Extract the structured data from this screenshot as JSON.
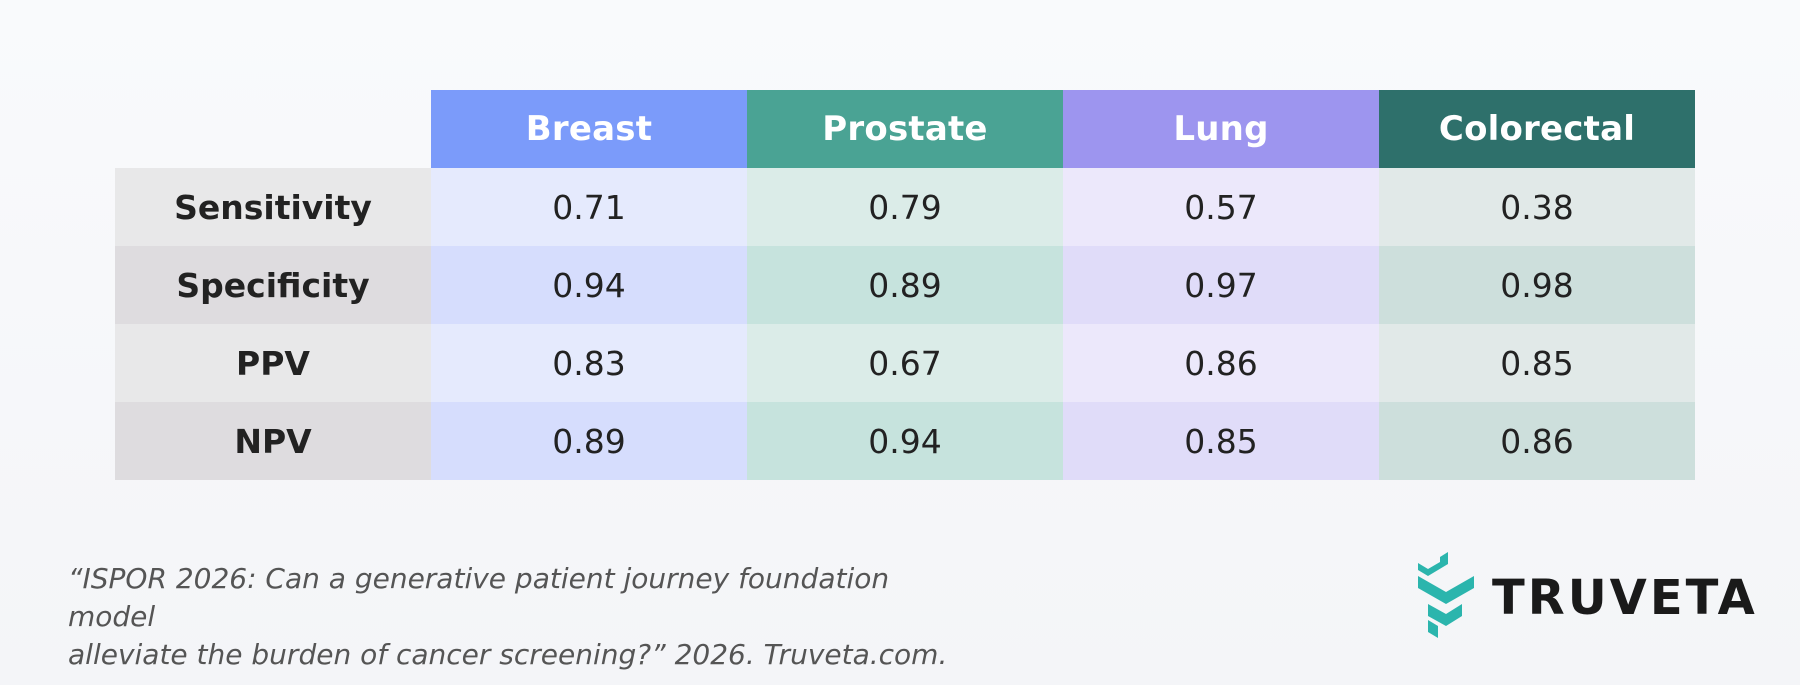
{
  "chart_data": {
    "type": "table",
    "columns": [
      {
        "label": "Breast",
        "header_color": "#7b9bfa",
        "cell_colors": [
          "#e5eafd",
          "#d6ddfd"
        ]
      },
      {
        "label": "Prostate",
        "header_color": "#4aa394",
        "cell_colors": [
          "#dbece8",
          "#c6e3dd"
        ]
      },
      {
        "label": "Lung",
        "header_color": "#9d95ef",
        "cell_colors": [
          "#ece8fb",
          "#e0dcf9"
        ]
      },
      {
        "label": "Colorectal",
        "header_color": "#2e706b",
        "cell_colors": [
          "#e1e9e8",
          "#cddfdc"
        ]
      }
    ],
    "rows": [
      {
        "label": "Sensitivity",
        "values": [
          "0.71",
          "0.79",
          "0.57",
          "0.38"
        ]
      },
      {
        "label": "Specificity",
        "values": [
          "0.94",
          "0.89",
          "0.97",
          "0.98"
        ]
      },
      {
        "label": "PPV",
        "values": [
          "0.83",
          "0.67",
          "0.86",
          "0.85"
        ]
      },
      {
        "label": "NPV",
        "values": [
          "0.89",
          "0.94",
          "0.85",
          "0.86"
        ]
      }
    ],
    "row_label_colors": [
      "#e8e8e9",
      "#dedcdf"
    ]
  },
  "citation": {
    "line1": "“ISPOR 2026: Can a generative patient journey foundation model",
    "line2": "alleviate the burden of cancer screening?” 2026. Truveta.com."
  },
  "logo": {
    "text": "TRUVETA",
    "icon": "truveta-chevron-logo-icon",
    "color": "#2bb5ad"
  }
}
